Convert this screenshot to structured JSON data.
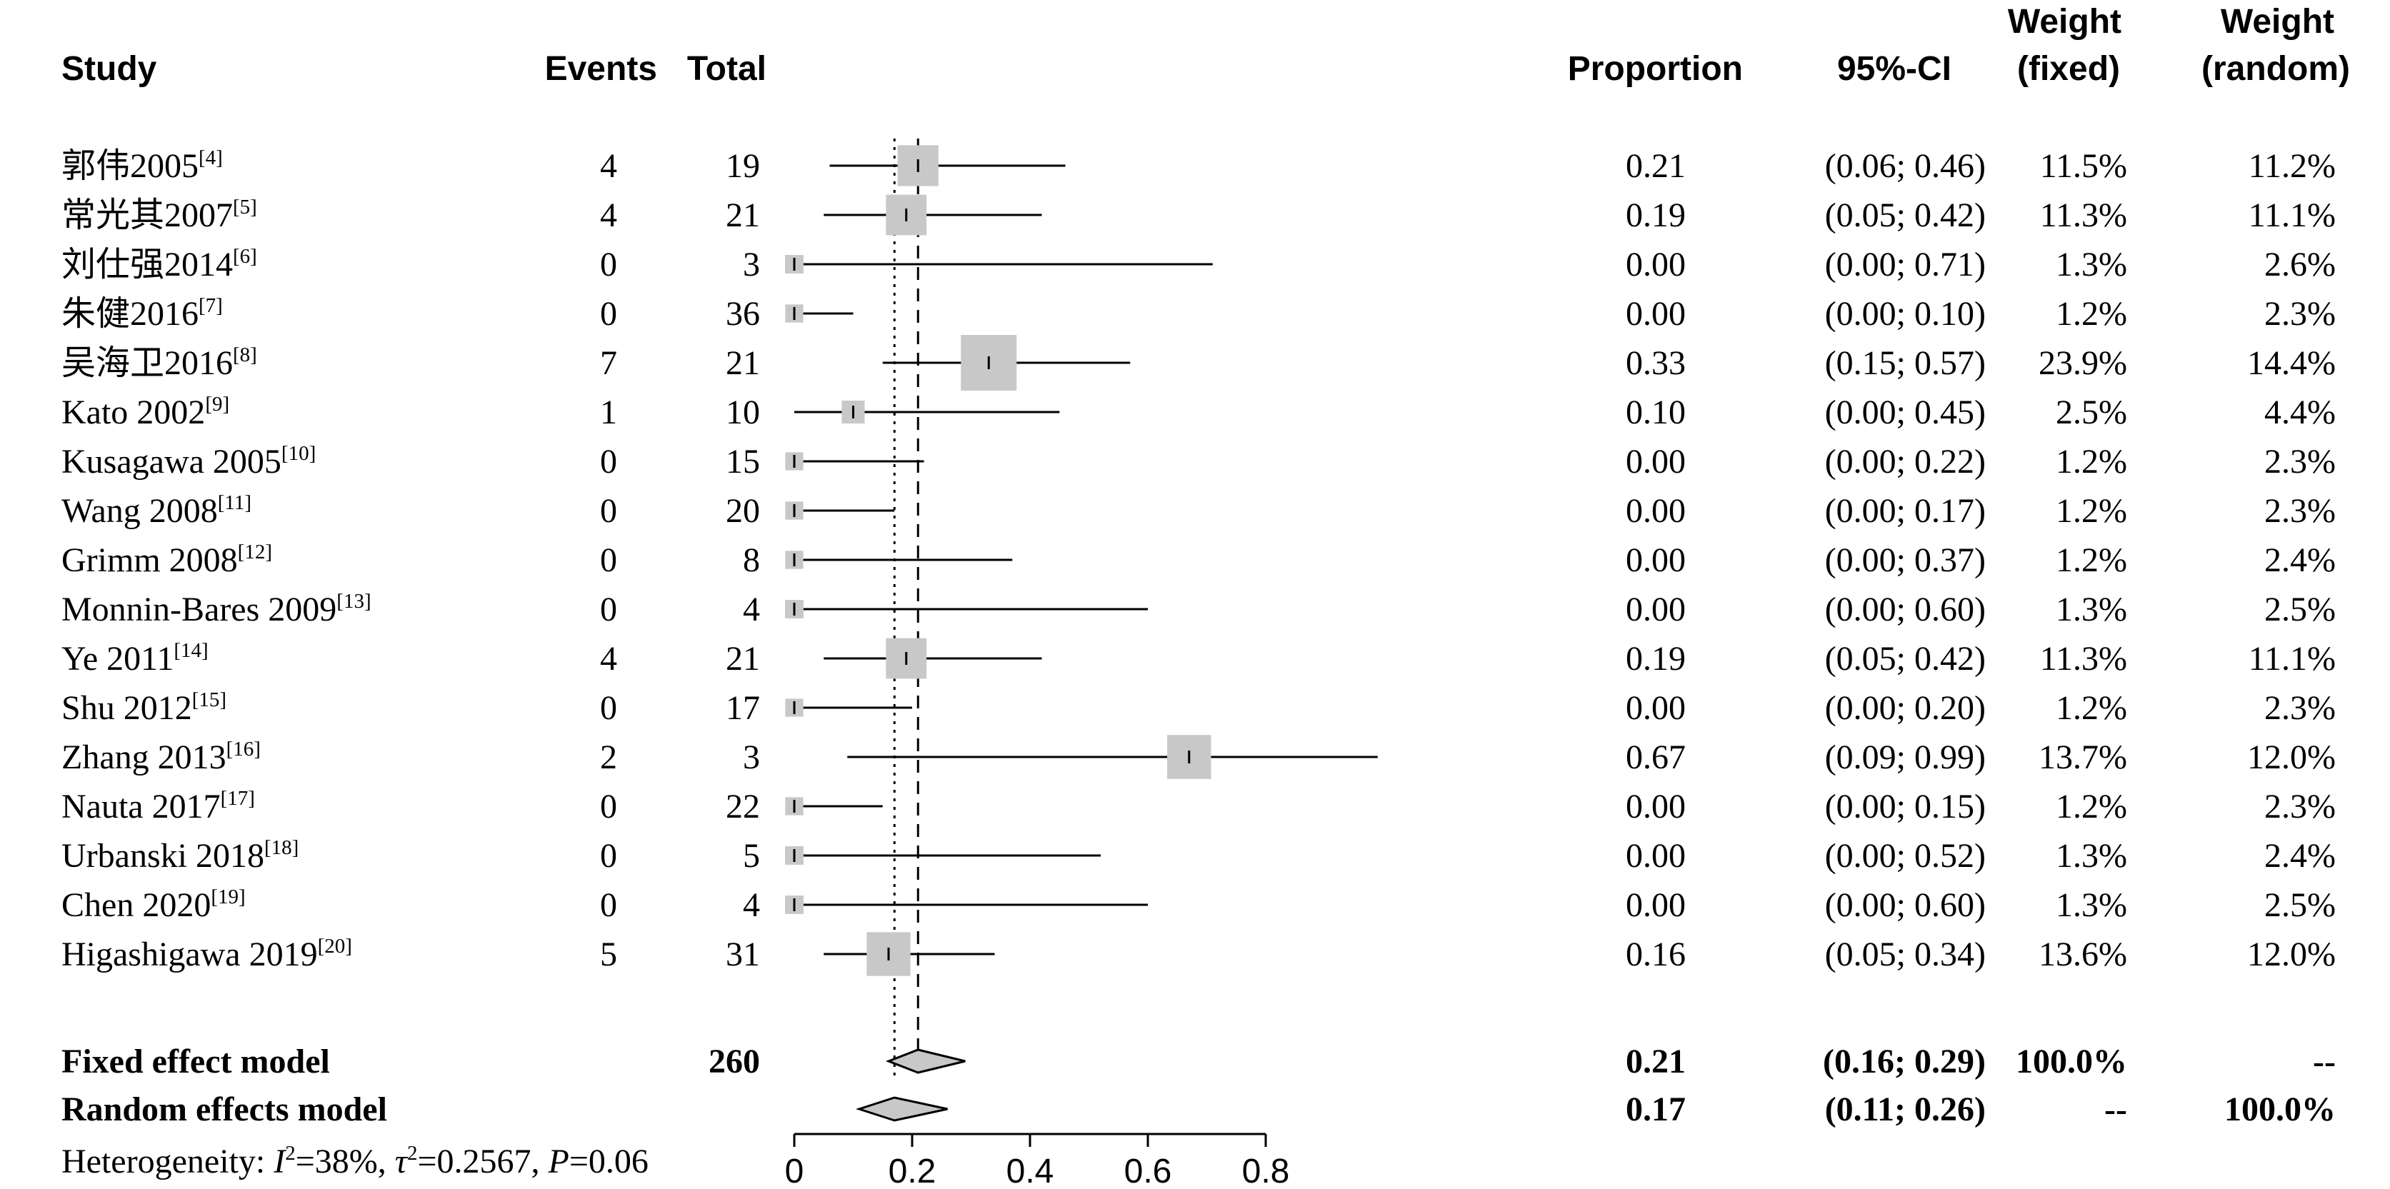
{
  "headers": {
    "study": "Study",
    "events": "Events",
    "total": "Total",
    "proportion": "Proportion",
    "ci": "95%-CI",
    "weight_fixed_1": "Weight",
    "weight_fixed_2": "(fixed)",
    "weight_random_1": "Weight",
    "weight_random_2": "(random)"
  },
  "chart_data": {
    "type": "forest",
    "xlim": [
      0,
      0.8
    ],
    "x_ticks": [
      "0",
      "0.2",
      "0.4",
      "0.6",
      "0.8"
    ],
    "x_tick_values": [
      0,
      0.2,
      0.4,
      0.6,
      0.8
    ],
    "fixed_line": 0.21,
    "random_line": 0.17,
    "studies": [
      {
        "name": "郭伟2005",
        "ref": "[4]",
        "events": "4",
        "total": "19",
        "prop": 0.21,
        "lower": 0.06,
        "upper": 0.46,
        "prop_text": "0.21",
        "ci_text": "(0.06; 0.46)",
        "w_fixed": "11.5%",
        "w_random": "11.2%",
        "w": 11.5
      },
      {
        "name": "常光其2007",
        "ref": "[5]",
        "events": "4",
        "total": "21",
        "prop": 0.19,
        "lower": 0.05,
        "upper": 0.42,
        "prop_text": "0.19",
        "ci_text": "(0.05; 0.42)",
        "w_fixed": "11.3%",
        "w_random": "11.1%",
        "w": 11.3
      },
      {
        "name": "刘仕强2014",
        "ref": "[6]",
        "events": "0",
        "total": "3",
        "prop": 0.0,
        "lower": 0.0,
        "upper": 0.71,
        "prop_text": "0.00",
        "ci_text": "(0.00; 0.71)",
        "w_fixed": "1.3%",
        "w_random": "2.6%",
        "w": 1.3
      },
      {
        "name": "朱健2016",
        "ref": "[7]",
        "events": "0",
        "total": "36",
        "prop": 0.0,
        "lower": 0.0,
        "upper": 0.1,
        "prop_text": "0.00",
        "ci_text": "(0.00; 0.10)",
        "w_fixed": "1.2%",
        "w_random": "2.3%",
        "w": 1.2
      },
      {
        "name": "吴海卫2016",
        "ref": "[8]",
        "events": "7",
        "total": "21",
        "prop": 0.33,
        "lower": 0.15,
        "upper": 0.57,
        "prop_text": "0.33",
        "ci_text": "(0.15; 0.57)",
        "w_fixed": "23.9%",
        "w_random": "14.4%",
        "w": 23.9
      },
      {
        "name": "Kato 2002",
        "ref": "[9]",
        "events": "1",
        "total": "10",
        "prop": 0.1,
        "lower": 0.0,
        "upper": 0.45,
        "prop_text": "0.10",
        "ci_text": "(0.00; 0.45)",
        "w_fixed": "2.5%",
        "w_random": "4.4%",
        "w": 2.5
      },
      {
        "name": "Kusagawa 2005",
        "ref": "[10]",
        "events": "0",
        "total": "15",
        "prop": 0.0,
        "lower": 0.0,
        "upper": 0.22,
        "prop_text": "0.00",
        "ci_text": "(0.00; 0.22)",
        "w_fixed": "1.2%",
        "w_random": "2.3%",
        "w": 1.2
      },
      {
        "name": "Wang 2008",
        "ref": "[11]",
        "events": "0",
        "total": "20",
        "prop": 0.0,
        "lower": 0.0,
        "upper": 0.17,
        "prop_text": "0.00",
        "ci_text": "(0.00; 0.17)",
        "w_fixed": "1.2%",
        "w_random": "2.3%",
        "w": 1.2
      },
      {
        "name": "Grimm 2008",
        "ref": "[12]",
        "events": "0",
        "total": "8",
        "prop": 0.0,
        "lower": 0.0,
        "upper": 0.37,
        "prop_text": "0.00",
        "ci_text": "(0.00; 0.37)",
        "w_fixed": "1.2%",
        "w_random": "2.4%",
        "w": 1.2
      },
      {
        "name": "Monnin-Bares 2009",
        "ref": "[13]",
        "events": "0",
        "total": "4",
        "prop": 0.0,
        "lower": 0.0,
        "upper": 0.6,
        "prop_text": "0.00",
        "ci_text": "(0.00; 0.60)",
        "w_fixed": "1.3%",
        "w_random": "2.5%",
        "w": 1.3
      },
      {
        "name": "Ye 2011",
        "ref": "[14]",
        "events": "4",
        "total": "21",
        "prop": 0.19,
        "lower": 0.05,
        "upper": 0.42,
        "prop_text": "0.19",
        "ci_text": "(0.05; 0.42)",
        "w_fixed": "11.3%",
        "w_random": "11.1%",
        "w": 11.3
      },
      {
        "name": "Shu 2012",
        "ref": "[15]",
        "events": "0",
        "total": "17",
        "prop": 0.0,
        "lower": 0.0,
        "upper": 0.2,
        "prop_text": "0.00",
        "ci_text": "(0.00; 0.20)",
        "w_fixed": "1.2%",
        "w_random": "2.3%",
        "w": 1.2
      },
      {
        "name": "Zhang 2013",
        "ref": "[16]",
        "events": "2",
        "total": "3",
        "prop": 0.67,
        "lower": 0.09,
        "upper": 0.99,
        "prop_text": "0.67",
        "ci_text": "(0.09; 0.99)",
        "w_fixed": "13.7%",
        "w_random": "12.0%",
        "w": 13.7
      },
      {
        "name": "Nauta 2017",
        "ref": "[17]",
        "events": "0",
        "total": "22",
        "prop": 0.0,
        "lower": 0.0,
        "upper": 0.15,
        "prop_text": "0.00",
        "ci_text": "(0.00; 0.15)",
        "w_fixed": "1.2%",
        "w_random": "2.3%",
        "w": 1.2
      },
      {
        "name": "Urbanski 2018",
        "ref": "[18]",
        "events": "0",
        "total": "5",
        "prop": 0.0,
        "lower": 0.0,
        "upper": 0.52,
        "prop_text": "0.00",
        "ci_text": "(0.00; 0.52)",
        "w_fixed": "1.3%",
        "w_random": "2.4%",
        "w": 1.3
      },
      {
        "name": "Chen 2020",
        "ref": "[19]",
        "events": "0",
        "total": "4",
        "prop": 0.0,
        "lower": 0.0,
        "upper": 0.6,
        "prop_text": "0.00",
        "ci_text": "(0.00; 0.60)",
        "w_fixed": "1.3%",
        "w_random": "2.5%",
        "w": 1.3
      },
      {
        "name": "Higashigawa 2019",
        "ref": "[20]",
        "events": "5",
        "total": "31",
        "prop": 0.16,
        "lower": 0.05,
        "upper": 0.34,
        "prop_text": "0.16",
        "ci_text": "(0.05; 0.34)",
        "w_fixed": "13.6%",
        "w_random": "12.0%",
        "w": 13.6
      }
    ],
    "summaries": [
      {
        "name": "Fixed effect model",
        "total": "260",
        "prop": 0.21,
        "lower": 0.16,
        "upper": 0.29,
        "prop_text": "0.21",
        "ci_text": "(0.16; 0.29)",
        "w_fixed": "100.0%",
        "w_random": "--"
      },
      {
        "name": "Random effects model",
        "total": "",
        "prop": 0.17,
        "lower": 0.11,
        "upper": 0.26,
        "prop_text": "0.17",
        "ci_text": "(0.11; 0.26)",
        "w_fixed": "--",
        "w_random": "100.0%"
      }
    ],
    "heterogeneity": {
      "prefix": "Heterogeneity: ",
      "i2_label": "I",
      "i2_value": "=38%, ",
      "tau_label": "τ",
      "tau_value": "=0.2567, ",
      "p_label": "P",
      "p_value": "=0.06"
    },
    "colors": {
      "square": "#c8c8c8",
      "diamond": "#c8c8c8",
      "line": "#000000"
    }
  }
}
